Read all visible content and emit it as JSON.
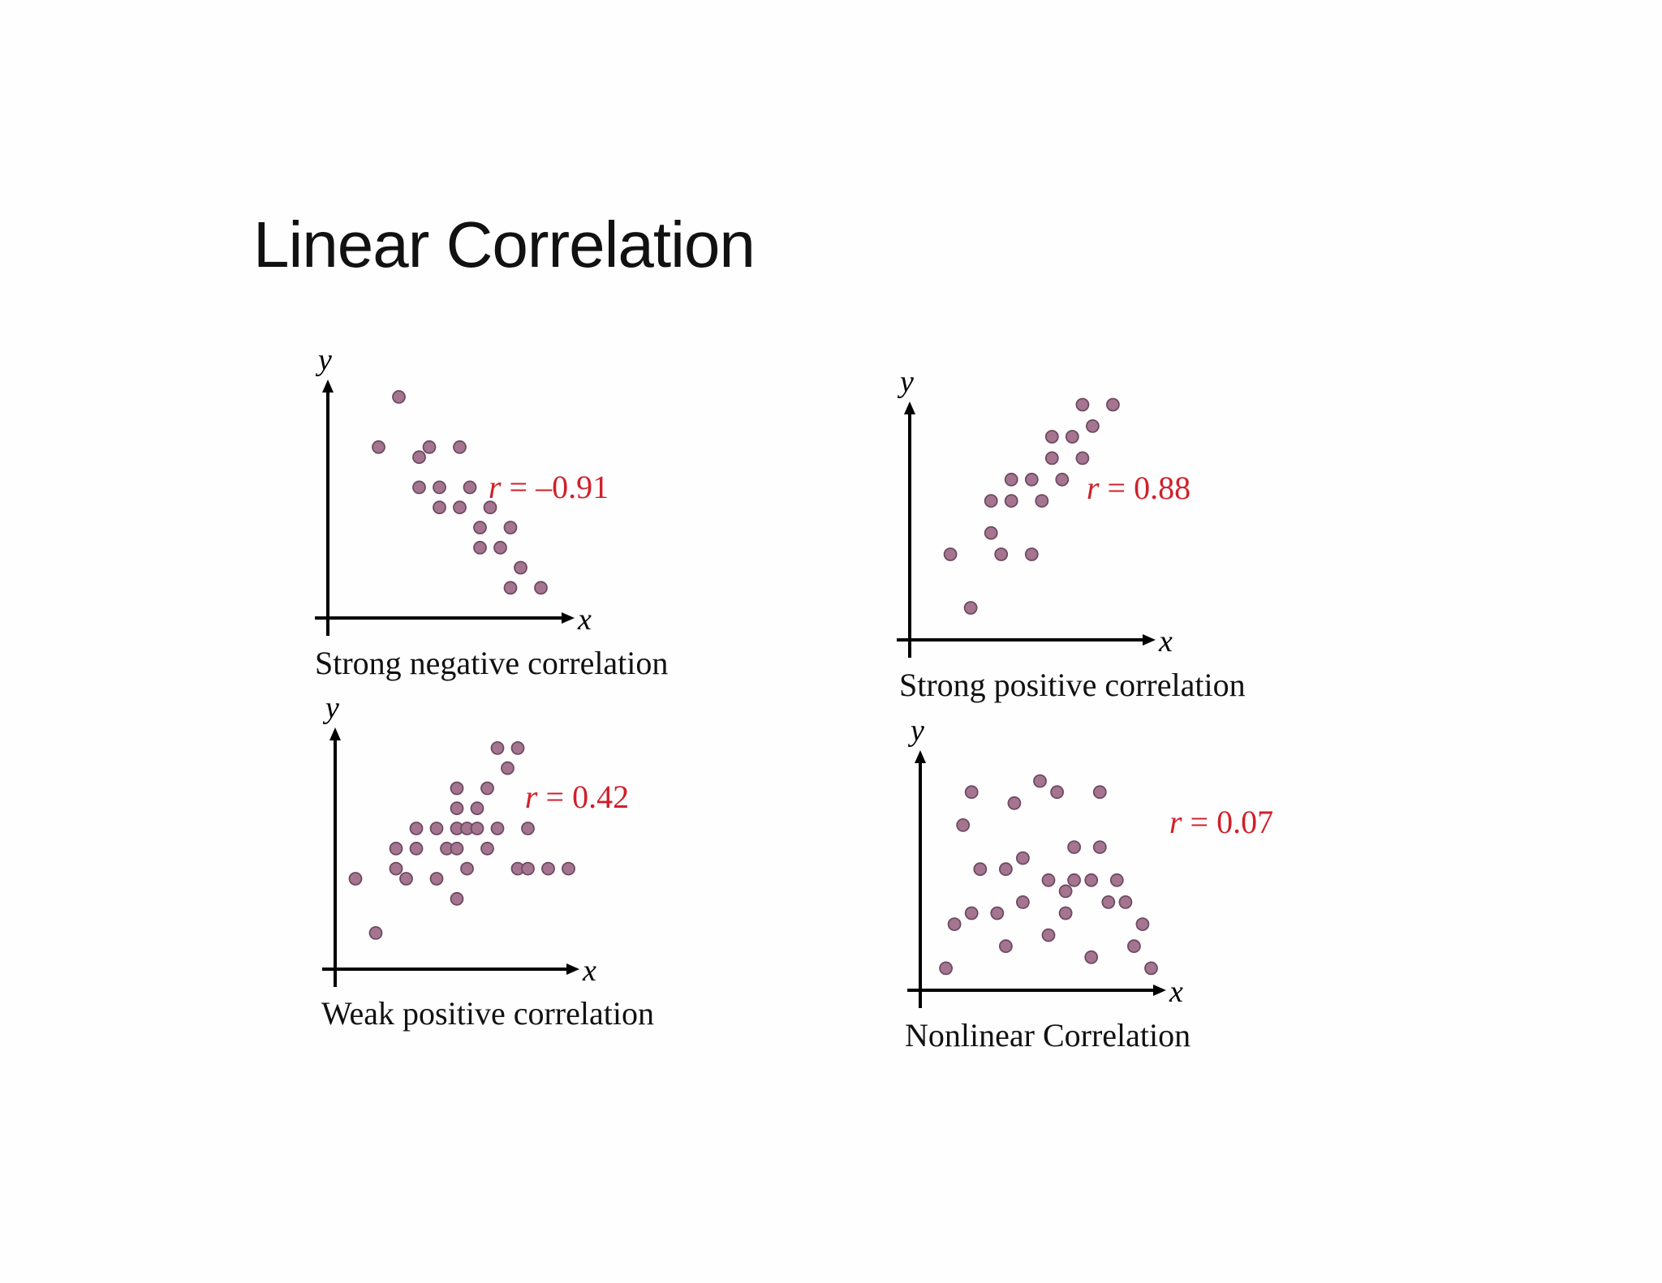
{
  "slide": {
    "title": "Linear Correlation"
  },
  "chart_data": [
    {
      "type": "scatter",
      "title": "Strong negative correlation",
      "xlabel": "x",
      "ylabel": "y",
      "annotation": {
        "var": "r",
        "eq": " = ",
        "value": "–0.91"
      },
      "xlim": [
        0,
        12
      ],
      "ylim": [
        0,
        11.5
      ],
      "grid": false,
      "point_color": "#a57590",
      "points": [
        [
          3.5,
          11
        ],
        [
          2.5,
          8.5
        ],
        [
          5,
          8.5
        ],
        [
          6.5,
          8.5
        ],
        [
          4.5,
          8
        ],
        [
          4.5,
          6.5
        ],
        [
          5.5,
          6.5
        ],
        [
          7,
          6.5
        ],
        [
          5.5,
          5.5
        ],
        [
          6.5,
          5.5
        ],
        [
          8,
          5.5
        ],
        [
          7.5,
          4.5
        ],
        [
          9,
          4.5
        ],
        [
          7.5,
          3.5
        ],
        [
          8.5,
          3.5
        ],
        [
          9.5,
          2.5
        ],
        [
          9,
          1.5
        ],
        [
          10.5,
          1.5
        ]
      ]
    },
    {
      "type": "scatter",
      "title": "Strong positive correlation",
      "xlabel": "x",
      "ylabel": "y",
      "annotation": {
        "var": "r",
        "eq": " = ",
        "value": "0.88"
      },
      "xlim": [
        0,
        11.5
      ],
      "ylim": [
        0,
        11
      ],
      "grid": false,
      "point_color": "#a57590",
      "points": [
        [
          2,
          4
        ],
        [
          3,
          1.5
        ],
        [
          4,
          5
        ],
        [
          4.5,
          4
        ],
        [
          4,
          6.5
        ],
        [
          5,
          6.5
        ],
        [
          5,
          7.5
        ],
        [
          6,
          7.5
        ],
        [
          6,
          4
        ],
        [
          6.5,
          6.5
        ],
        [
          7,
          8.5
        ],
        [
          7,
          9.5
        ],
        [
          7.5,
          7.5
        ],
        [
          8,
          9.5
        ],
        [
          8.5,
          8.5
        ],
        [
          8.5,
          11
        ],
        [
          9,
          10
        ],
        [
          10,
          11
        ]
      ]
    },
    {
      "type": "scatter",
      "title": "Weak positive correlation",
      "xlabel": "x",
      "ylabel": "y",
      "annotation": {
        "var": "r",
        "eq": " = ",
        "value": "0.42"
      },
      "xlim": [
        0,
        12
      ],
      "ylim": [
        0,
        11.5
      ],
      "grid": false,
      "point_color": "#a57590",
      "points": [
        [
          1,
          4.5
        ],
        [
          2,
          1.8
        ],
        [
          3,
          5
        ],
        [
          3.5,
          4.5
        ],
        [
          3,
          6
        ],
        [
          4,
          7
        ],
        [
          4,
          6
        ],
        [
          5,
          7
        ],
        [
          5,
          4.5
        ],
        [
          5.5,
          6
        ],
        [
          6,
          6
        ],
        [
          6,
          7
        ],
        [
          6,
          8
        ],
        [
          6,
          9
        ],
        [
          6,
          3.5
        ],
        [
          6.5,
          7
        ],
        [
          6.5,
          5
        ],
        [
          7,
          7
        ],
        [
          7,
          8
        ],
        [
          7.5,
          9
        ],
        [
          7.5,
          6
        ],
        [
          8,
          11
        ],
        [
          8.5,
          10
        ],
        [
          8,
          7
        ],
        [
          9,
          11
        ],
        [
          9,
          5
        ],
        [
          9.5,
          7
        ],
        [
          9.5,
          5
        ],
        [
          10.5,
          5
        ],
        [
          11.5,
          5
        ]
      ]
    },
    {
      "type": "scatter",
      "title": "Nonlinear Correlation",
      "xlabel": "x",
      "ylabel": "y",
      "annotation": {
        "var": "r",
        "eq": " = ",
        "value": "0.07"
      },
      "xlim": [
        0,
        14
      ],
      "ylim": [
        0,
        10.5
      ],
      "grid": false,
      "point_color": "#a57590",
      "points": [
        [
          1.5,
          1
        ],
        [
          2,
          3
        ],
        [
          2.5,
          7.5
        ],
        [
          3,
          9
        ],
        [
          3,
          3.5
        ],
        [
          3.5,
          5.5
        ],
        [
          4.5,
          3.5
        ],
        [
          5,
          5.5
        ],
        [
          5,
          2
        ],
        [
          5.5,
          8.5
        ],
        [
          6,
          6
        ],
        [
          6,
          4
        ],
        [
          7,
          9.5
        ],
        [
          7.5,
          5
        ],
        [
          7.5,
          2.5
        ],
        [
          8,
          9
        ],
        [
          8.5,
          4.5
        ],
        [
          8.5,
          3.5
        ],
        [
          9,
          5
        ],
        [
          9,
          6.5
        ],
        [
          10,
          5
        ],
        [
          10,
          1.5
        ],
        [
          10.5,
          9
        ],
        [
          10.5,
          6.5
        ],
        [
          11,
          4
        ],
        [
          11.5,
          5
        ],
        [
          12,
          4
        ],
        [
          12.5,
          2
        ],
        [
          13,
          3
        ],
        [
          13.5,
          1
        ]
      ]
    }
  ]
}
